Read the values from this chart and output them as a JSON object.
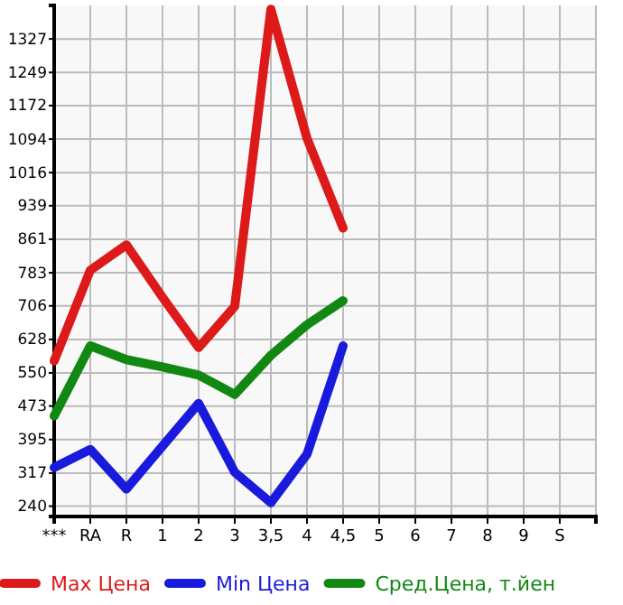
{
  "chart_data": {
    "type": "line",
    "categories": [
      "***",
      "RA",
      "R",
      "1",
      "2",
      "3",
      "3,5",
      "4",
      "4,5",
      "5",
      "6",
      "7",
      "8",
      "9",
      "S"
    ],
    "series": [
      {
        "name": "Max Цена",
        "color": "#dd1a1a",
        "values": [
          578,
          789,
          848,
          726,
          609,
          705,
          1396,
          1096,
          887,
          null,
          null,
          null,
          null,
          null,
          null
        ]
      },
      {
        "name": "Min Цена",
        "color": "#1a1add",
        "values": [
          330,
          372,
          280,
          380,
          479,
          319,
          248,
          361,
          613,
          null,
          null,
          null,
          null,
          null,
          null
        ]
      },
      {
        "name": "Сред.Цена, т.йен",
        "color": "#118811",
        "values": [
          450,
          613,
          581,
          564,
          545,
          500,
          591,
          662,
          718,
          null,
          null,
          null,
          null,
          null,
          null
        ]
      }
    ],
    "ylim": [
      216,
      1405
    ],
    "yticks": [
      240,
      317,
      395,
      473,
      550,
      628,
      706,
      783,
      861,
      939,
      1016,
      1094,
      1172,
      1249,
      1327
    ],
    "grid": true,
    "legend": "bottom",
    "marker": "none",
    "line_style": "solid"
  }
}
